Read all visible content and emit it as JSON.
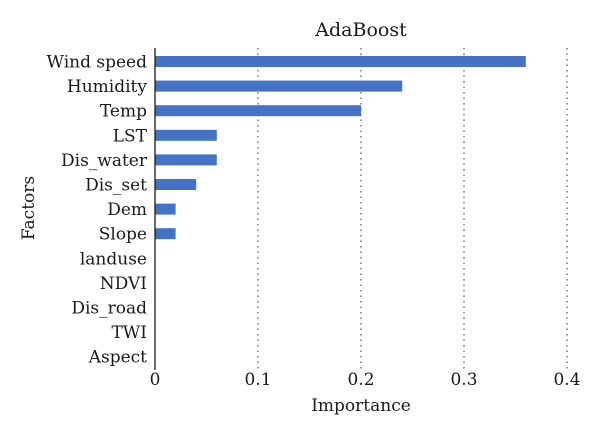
{
  "chart_data": {
    "type": "bar",
    "orientation": "horizontal",
    "title": "AdaBoost",
    "xlabel": "Importance",
    "ylabel": "Factors",
    "categories": [
      "Wind speed",
      "Humidity",
      "Temp",
      "LST",
      "Dis_water",
      "Dis_set",
      "Dem",
      "Slope",
      "landuse",
      "NDVI",
      "Dis_road",
      "TWI",
      "Aspect"
    ],
    "values": [
      0.36,
      0.24,
      0.2,
      0.06,
      0.06,
      0.04,
      0.02,
      0.02,
      0,
      0,
      0,
      0,
      0
    ],
    "xlim": [
      0,
      0.4
    ],
    "xticks": [
      0,
      0.1,
      0.2,
      0.3,
      0.4
    ],
    "xtick_labels": [
      "0",
      "0.1",
      "0.2",
      "0.3",
      "0.4"
    ],
    "grid": "vertical-dotted",
    "bar_color": "#4472c4"
  }
}
